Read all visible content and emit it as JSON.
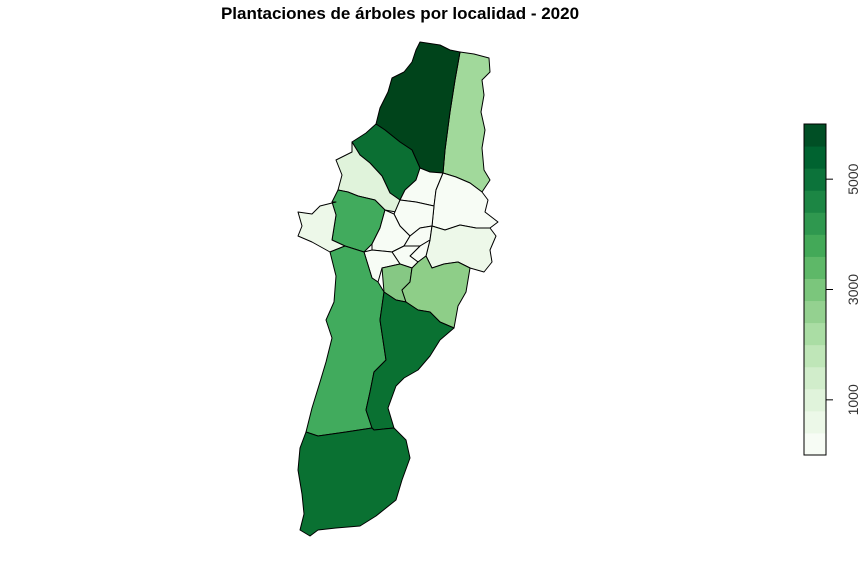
{
  "title": "Plantaciones de árboles por localidad - 2020",
  "legend": {
    "type": "continuous-colorbar",
    "placement": "right",
    "range": [
      0,
      6000
    ],
    "breaks": [
      0,
      400,
      800,
      1200,
      1600,
      2000,
      2400,
      2800,
      3200,
      3600,
      4000,
      4400,
      4800,
      5200,
      5600,
      6000
    ],
    "tick_values": [
      1000,
      3000,
      5000
    ],
    "tick_labels": [
      "1000",
      "3000",
      "5000"
    ],
    "colors": [
      "#f7fcf5",
      "#ecf8e8",
      "#e0f3db",
      "#d1edcb",
      "#bfe6b8",
      "#aadda4",
      "#94d190",
      "#7bc67c",
      "#5eb868",
      "#43a958",
      "#2f984f",
      "#1c8644",
      "#0c733a",
      "#006330",
      "#004f25"
    ]
  },
  "regions": [
    {
      "id": "usaquen",
      "color": "#a1d99b"
    },
    {
      "id": "suba",
      "color": "#00441b"
    },
    {
      "id": "engativa",
      "color": "#0b6f33"
    },
    {
      "id": "fontibon",
      "color": "#e0f3db"
    },
    {
      "id": "kennedy",
      "color": "#41ab5d"
    },
    {
      "id": "bosa",
      "color": "#edf8e9"
    },
    {
      "id": "barrios-unidos",
      "color": "#f7fcf5"
    },
    {
      "id": "teusaquillo",
      "color": "#f7fcf5"
    },
    {
      "id": "chapinero",
      "color": "#f7fcf5"
    },
    {
      "id": "puente-aranda",
      "color": "#f7fcf5"
    },
    {
      "id": "martires",
      "color": "#f7fcf5"
    },
    {
      "id": "santa-fe",
      "color": "#edf8e9"
    },
    {
      "id": "candelaria",
      "color": "#f7fcf5"
    },
    {
      "id": "antonio-narino",
      "color": "#f7fcf5"
    },
    {
      "id": "tunjuelito",
      "color": "#f7fcf5"
    },
    {
      "id": "rafael-uribe",
      "color": "#86c884"
    },
    {
      "id": "san-cristobal",
      "color": "#8ece88"
    },
    {
      "id": "ciudad-bolivar",
      "color": "#41ab5d"
    },
    {
      "id": "usme",
      "color": "#0a7132"
    },
    {
      "id": "sumapaz",
      "color": "#0a7132"
    }
  ]
}
